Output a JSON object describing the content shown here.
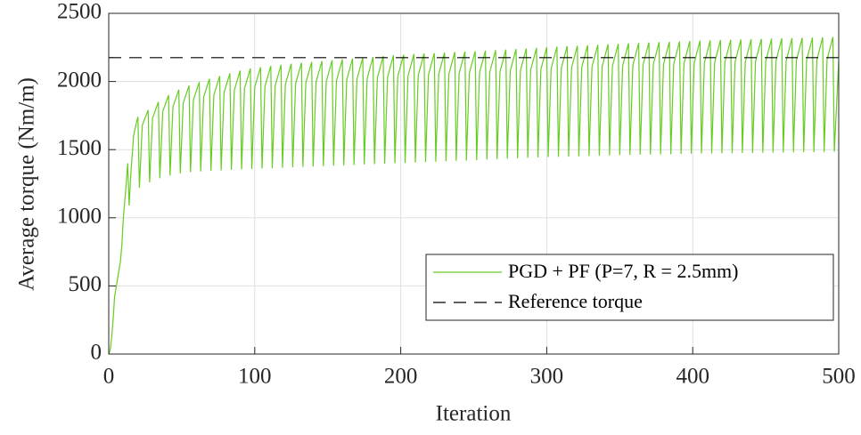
{
  "chart_data": {
    "type": "line",
    "xlabel": "Iteration",
    "ylabel": "Average torque (Nm/m)",
    "xlim": [
      0,
      500
    ],
    "xticks": [
      0,
      100,
      200,
      300,
      400,
      500
    ],
    "ylim": [
      0,
      2500
    ],
    "yticks": [
      0,
      500,
      1000,
      1500,
      2000,
      2500
    ],
    "grid": true,
    "legend": "southeast",
    "series": [
      {
        "name": "PGD + PF (P=7, R = 2.5mm)",
        "color": "#66cc22",
        "dash": "solid",
        "x": [
          0,
          1,
          2,
          3,
          4,
          6,
          8,
          9,
          10,
          12,
          13,
          14,
          15,
          17,
          19,
          20,
          21,
          23,
          27,
          28,
          30,
          34,
          35,
          37,
          41,
          42,
          44,
          48,
          49,
          51,
          55,
          56,
          58,
          62,
          63,
          65,
          69,
          70,
          72,
          76,
          77,
          79,
          83,
          84,
          86,
          90,
          91,
          93,
          97,
          98,
          100,
          104,
          105,
          107,
          111,
          112,
          114,
          118,
          119,
          121,
          125,
          126,
          128,
          132,
          133,
          135,
          139,
          140,
          142,
          146,
          147,
          149,
          153,
          154,
          156,
          160,
          161,
          163,
          167,
          168,
          170,
          174,
          175,
          177,
          181,
          182,
          184,
          188,
          189,
          191,
          195,
          196,
          198,
          202,
          203,
          205,
          209,
          210,
          212,
          216,
          217,
          219,
          223,
          224,
          226,
          230,
          231,
          233,
          237,
          238,
          240,
          244,
          245,
          247,
          251,
          252,
          254,
          258,
          259,
          261,
          265,
          266,
          268,
          272,
          273,
          275,
          279,
          280,
          282,
          286,
          287,
          289,
          293,
          294,
          296,
          300,
          301,
          303,
          307,
          308,
          310,
          314,
          315,
          317,
          321,
          322,
          324,
          328,
          329,
          331,
          335,
          336,
          338,
          342,
          343,
          345,
          349,
          350,
          352,
          356,
          357,
          359,
          363,
          364,
          366,
          370,
          371,
          373,
          377,
          378,
          380,
          384,
          385,
          387,
          391,
          392,
          394,
          398,
          399,
          401,
          405,
          406,
          408,
          412,
          413,
          415,
          419,
          420,
          422,
          426,
          427,
          429,
          433,
          434,
          436,
          440,
          441,
          443,
          447,
          448,
          450,
          454,
          455,
          457,
          461,
          462,
          464,
          468,
          469,
          471,
          475,
          476,
          478,
          482,
          483,
          485,
          489,
          490,
          492,
          496,
          497,
          500
        ],
        "values": [
          0,
          30,
          120,
          250,
          420,
          550,
          680,
          800,
          1000,
          1250,
          1400,
          1090,
          1300,
          1600,
          1700,
          1740,
          1220,
          1680,
          1790,
          1260,
          1730,
          1850,
          1290,
          1780,
          1900,
          1310,
          1815,
          1940,
          1325,
          1840,
          1970,
          1335,
          1865,
          1995,
          1340,
          1885,
          2020,
          1345,
          1900,
          2040,
          1348,
          1920,
          2060,
          1352,
          1935,
          2080,
          1355,
          1950,
          2095,
          1358,
          1960,
          2105,
          1361,
          1965,
          2115,
          1364,
          1970,
          2122,
          1367,
          1980,
          2130,
          1370,
          1985,
          2137,
          1373,
          1990,
          2144,
          1376,
          1995,
          2150,
          1379,
          2000,
          2156,
          1382,
          2006,
          2162,
          1385,
          2012,
          2168,
          1388,
          2017,
          2174,
          1391,
          2022,
          2180,
          1394,
          2028,
          2186,
          1397,
          2033,
          2192,
          1400,
          2038,
          2197,
          1403,
          2041,
          2201,
          1406,
          2045,
          2205,
          1409,
          2048,
          2208,
          1412,
          2052,
          2212,
          1415,
          2055,
          2215,
          1418,
          2059,
          2219,
          1420,
          2062,
          2222,
          1423,
          2065,
          2226,
          1427,
          2069,
          2230,
          1430,
          2073,
          2234,
          1434,
          2077,
          2238,
          1437,
          2081,
          2242,
          1440,
          2085,
          2246,
          1443,
          2089,
          2250,
          1445,
          2093,
          2255,
          1447,
          2097,
          2259,
          1449,
          2100,
          2262,
          1451,
          2104,
          2266,
          1453,
          2107,
          2269,
          1455,
          2110,
          2273,
          1457,
          2113,
          2276,
          1460,
          2116,
          2280,
          1461,
          2119,
          2283,
          1463,
          2122,
          2286,
          1464,
          2124,
          2289,
          1465,
          2126,
          2291,
          1466,
          2128,
          2294,
          1468,
          2131,
          2297,
          1470,
          2134,
          2300,
          1471,
          2136,
          2302,
          1472,
          2138,
          2304,
          1473,
          2140,
          2306,
          1474,
          2142,
          2308,
          1475,
          2144,
          2310,
          1476,
          2145,
          2312,
          1477,
          2147,
          2314,
          1478,
          2149,
          2316,
          1479,
          2151,
          2318,
          1480,
          2153,
          2320,
          1481,
          2155,
          2322,
          1482,
          2157,
          2324,
          1483,
          2159,
          2326,
          1484,
          2150
        ]
      },
      {
        "name": "Reference torque",
        "color": "#000000",
        "dash": "dashed",
        "x": [
          0,
          500
        ],
        "values": [
          2175,
          2175
        ]
      }
    ]
  }
}
